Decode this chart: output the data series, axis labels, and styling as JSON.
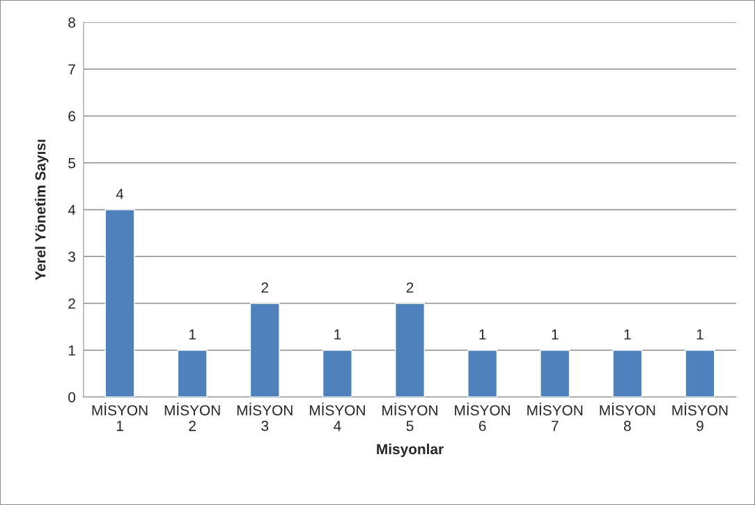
{
  "chart_data": {
    "type": "bar",
    "xlabel": "Misyonlar",
    "ylabel": "Yerel Yönetim Sayısı",
    "categories": [
      "MİSYON 1",
      "MİSYON 2",
      "MİSYON 3",
      "MİSYON 4",
      "MİSYON 5",
      "MİSYON 6",
      "MİSYON 7",
      "MİSYON 8",
      "MİSYON 9"
    ],
    "values": [
      4,
      1,
      2,
      1,
      2,
      1,
      1,
      1,
      1
    ],
    "color": "#4f81bd",
    "ylim": [
      0,
      8
    ],
    "yticks": [
      0,
      1,
      2,
      3,
      4,
      5,
      6,
      7,
      8
    ],
    "grid": "y",
    "data_labels": true
  }
}
